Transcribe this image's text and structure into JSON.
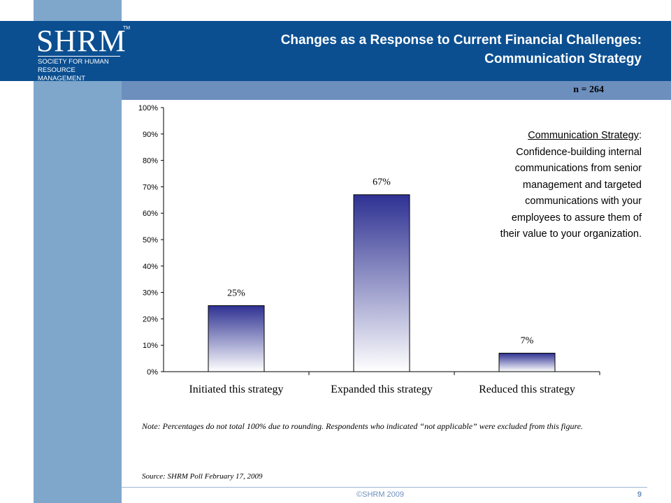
{
  "logo": {
    "wordmark": "SHRM",
    "tm": "TM",
    "tagline": "Society for Human Resource Management"
  },
  "title": {
    "line1": "Changes as a Response to Current Financial Challenges:",
    "line2": "Communication Strategy"
  },
  "sample": "n = 264",
  "annotation": {
    "heading": "Communication Strategy",
    "colon": ":",
    "body_lines": [
      "Confidence-building internal",
      "communications from senior",
      "management and targeted",
      "communications with your",
      "employees to assure them of",
      "their value to your organization."
    ]
  },
  "note": "Note: Percentages do not total 100%  due to rounding. Respondents who indicated “not applicable” were excluded from this figure.",
  "source": "Source: SHRM Poll February 17, 2009",
  "footer": {
    "copyright": "©SHRM 2009",
    "page": "9"
  },
  "colors": {
    "bar_top": "#2e3192",
    "bar_bottom": "#ffffff",
    "title_band": "#0b4f91",
    "side_bar": "#7fa7cc"
  },
  "chart_data": {
    "type": "bar",
    "categories": [
      "Initiated this strategy",
      "Expanded this strategy",
      "Reduced this strategy"
    ],
    "values": [
      25,
      67,
      7
    ],
    "data_labels": [
      "25%",
      "67%",
      "7%"
    ],
    "ylim": [
      0,
      100
    ],
    "yticks": [
      "0%",
      "10%",
      "20%",
      "30%",
      "40%",
      "50%",
      "60%",
      "70%",
      "80%",
      "90%",
      "100%"
    ],
    "grid": false
  }
}
